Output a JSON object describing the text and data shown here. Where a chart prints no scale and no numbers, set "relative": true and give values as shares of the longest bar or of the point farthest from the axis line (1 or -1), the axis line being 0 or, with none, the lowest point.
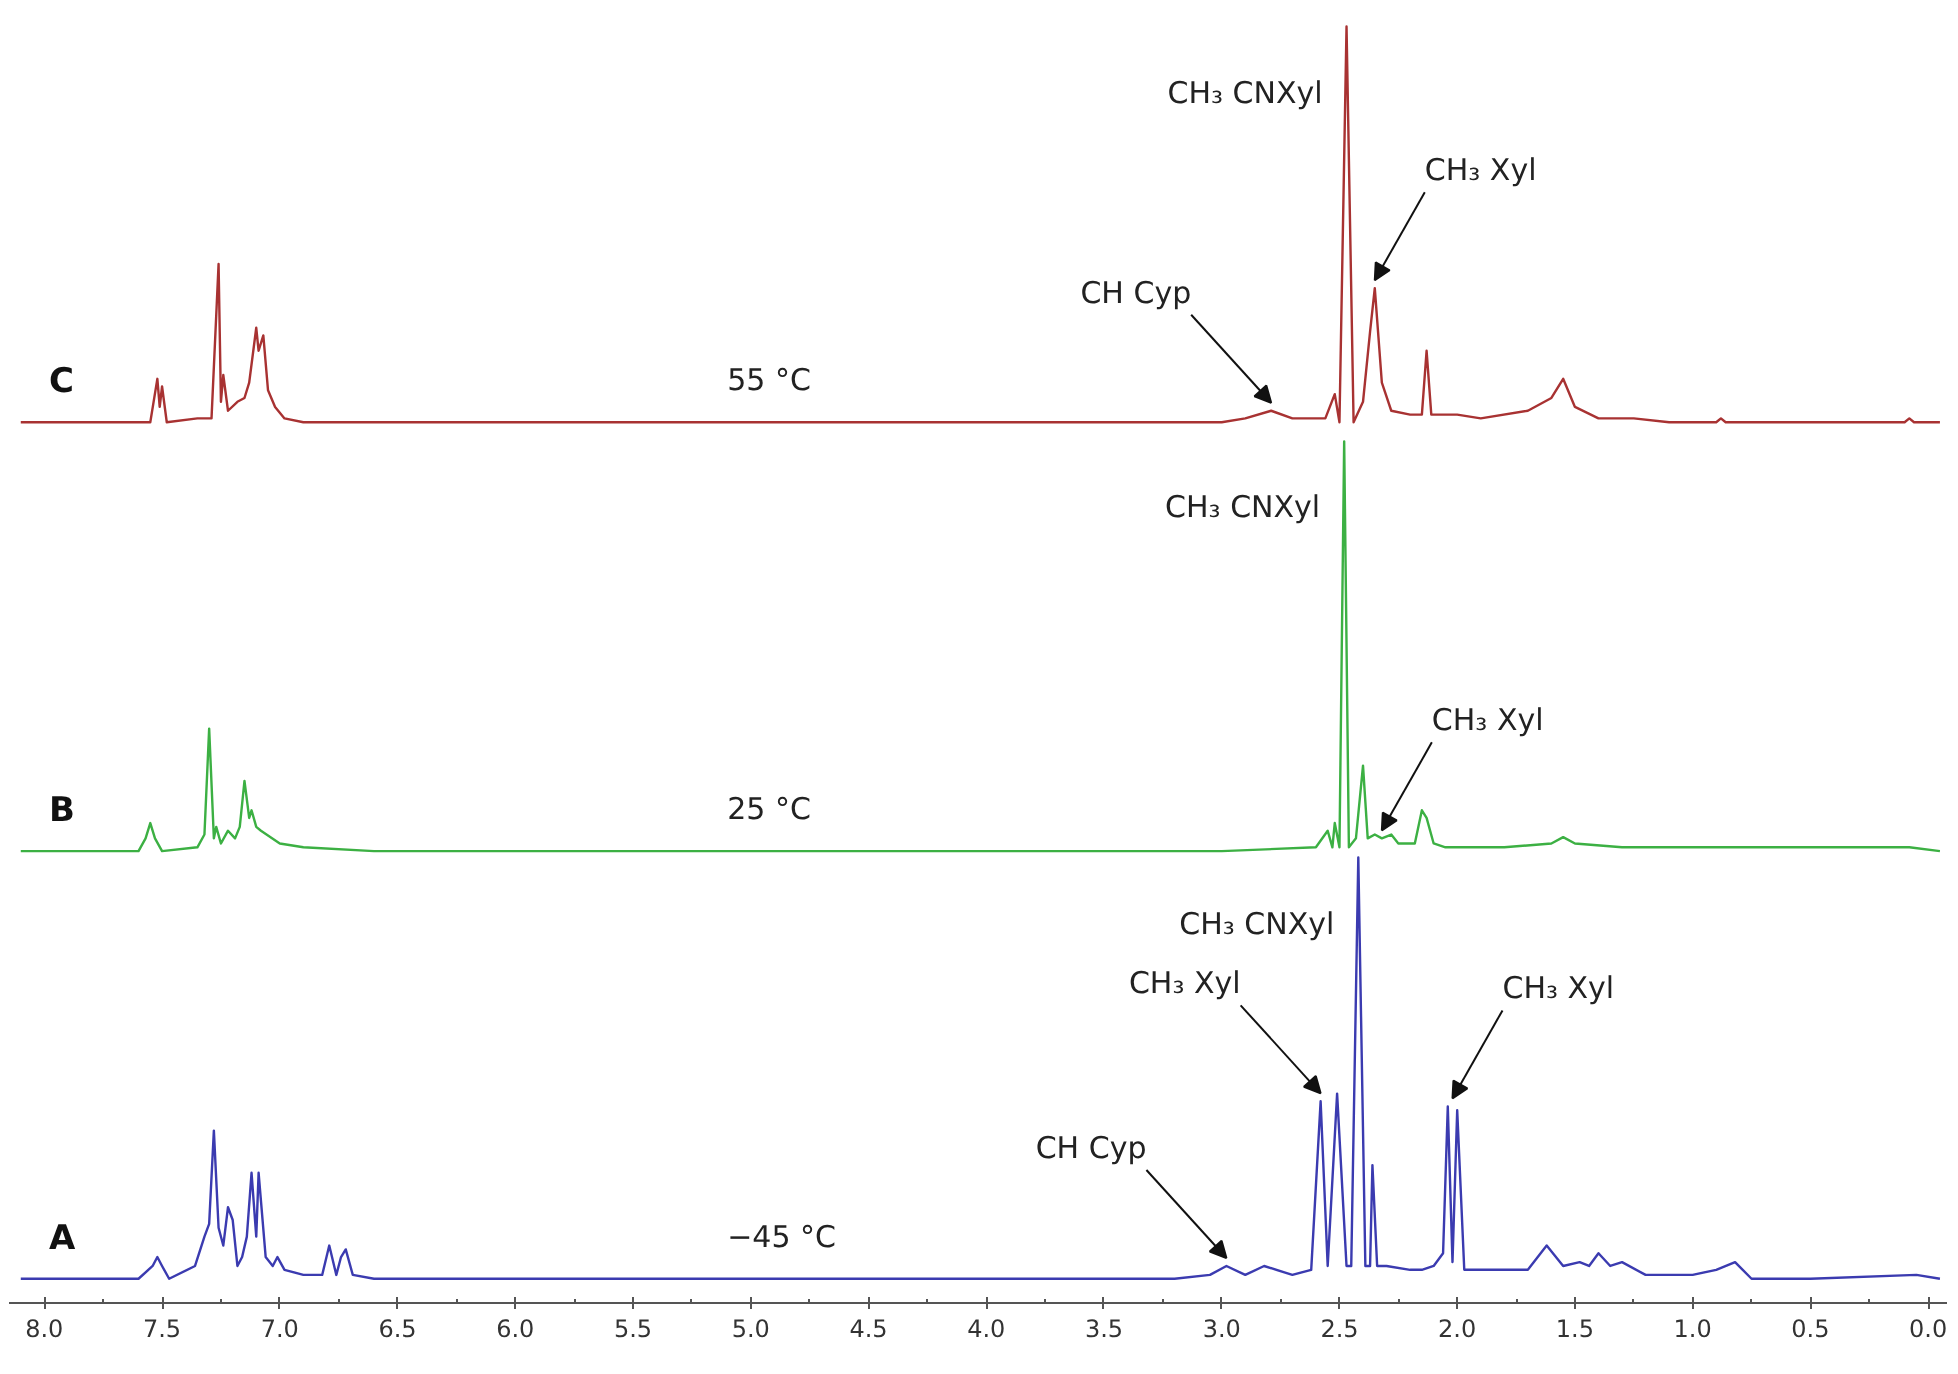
{
  "chart_data": {
    "type": "line",
    "relative": true,
    "xlim": [
      8.15,
      -0.08
    ],
    "xticks": [
      {
        "value": 8,
        "label": "8.0"
      },
      {
        "value": 7.5,
        "label": "7.5"
      },
      {
        "value": 7,
        "label": "7.0"
      },
      {
        "value": 6.5,
        "label": "6.5"
      },
      {
        "value": 6,
        "label": "6.0"
      },
      {
        "value": 5.5,
        "label": "5.5"
      },
      {
        "value": 5,
        "label": "5.0"
      },
      {
        "value": 4.5,
        "label": "4.5"
      },
      {
        "value": 4,
        "label": "4.0"
      },
      {
        "value": 3.5,
        "label": "3.5"
      },
      {
        "value": 3,
        "label": "3.0"
      },
      {
        "value": 2.5,
        "label": "2.5"
      },
      {
        "value": 2,
        "label": "2.0"
      },
      {
        "value": 1.5,
        "label": "1.5"
      },
      {
        "value": 1,
        "label": "1.0"
      },
      {
        "value": 0.5,
        "label": "0.5"
      },
      {
        "value": 0,
        "label": "0.0"
      }
    ],
    "tick_labels": "x",
    "series": [
      {
        "name": "C",
        "color": "#a83232",
        "x": [
          8.1,
          7.6,
          7.55,
          7.52,
          7.51,
          7.5,
          7.48,
          7.35,
          7.29,
          7.26,
          7.25,
          7.24,
          7.22,
          7.18,
          7.15,
          7.13,
          7.1,
          7.09,
          7.07,
          7.05,
          7.02,
          6.98,
          6.9,
          6.5,
          3.0,
          2.9,
          2.79,
          2.7,
          2.56,
          2.52,
          2.5,
          2.47,
          2.44,
          2.4,
          2.37,
          2.35,
          2.32,
          2.28,
          2.2,
          2.15,
          2.13,
          2.11,
          2.05,
          2.0,
          1.9,
          1.7,
          1.6,
          1.55,
          1.5,
          1.4,
          1.25,
          1.1,
          0.9,
          0.88,
          0.86,
          0.1,
          0.08,
          0.06,
          -0.05
        ],
        "values": [
          0.69,
          0.69,
          0.69,
          0.724,
          0.702,
          0.718,
          0.69,
          0.693,
          0.693,
          0.814,
          0.706,
          0.727,
          0.699,
          0.706,
          0.709,
          0.721,
          0.764,
          0.746,
          0.758,
          0.715,
          0.702,
          0.693,
          0.69,
          0.69,
          0.69,
          0.693,
          0.699,
          0.693,
          0.693,
          0.712,
          0.69,
          1,
          0.69,
          0.706,
          0.761,
          0.795,
          0.721,
          0.699,
          0.696,
          0.696,
          0.746,
          0.696,
          0.696,
          0.696,
          0.693,
          0.699,
          0.709,
          0.724,
          0.702,
          0.693,
          0.693,
          0.69,
          0.69,
          0.693,
          0.69,
          0.69,
          0.693,
          0.69,
          0.69
        ]
      },
      {
        "name": "B",
        "color": "#3cb043",
        "x": [
          8.1,
          7.6,
          7.57,
          7.55,
          7.53,
          7.5,
          7.35,
          7.32,
          7.3,
          7.28,
          7.27,
          7.25,
          7.22,
          7.19,
          7.17,
          7.15,
          7.13,
          7.12,
          7.1,
          7.08,
          7.0,
          6.9,
          6.6,
          3.0,
          2.6,
          2.55,
          2.53,
          2.52,
          2.5,
          2.48,
          2.46,
          2.43,
          2.4,
          2.38,
          2.35,
          2.32,
          2.28,
          2.25,
          2.18,
          2.15,
          2.13,
          2.1,
          2.05,
          1.8,
          1.6,
          1.55,
          1.5,
          1.3,
          1.0,
          0.88,
          0.5,
          0.08,
          -0.05
        ],
        "values": [
          0.354,
          0.354,
          0.364,
          0.376,
          0.364,
          0.354,
          0.357,
          0.367,
          0.45,
          0.364,
          0.373,
          0.36,
          0.37,
          0.364,
          0.373,
          0.409,
          0.38,
          0.386,
          0.373,
          0.37,
          0.36,
          0.357,
          0.354,
          0.354,
          0.357,
          0.37,
          0.357,
          0.376,
          0.357,
          0.675,
          0.357,
          0.364,
          0.421,
          0.364,
          0.367,
          0.364,
          0.367,
          0.36,
          0.36,
          0.386,
          0.38,
          0.36,
          0.357,
          0.357,
          0.36,
          0.365,
          0.36,
          0.357,
          0.357,
          0.357,
          0.357,
          0.357,
          0.354
        ]
      },
      {
        "name": "A",
        "color": "#3b3bb0",
        "x": [
          8.1,
          7.6,
          7.54,
          7.52,
          7.5,
          7.47,
          7.36,
          7.32,
          7.3,
          7.28,
          7.26,
          7.24,
          7.22,
          7.2,
          7.18,
          7.16,
          7.14,
          7.12,
          7.1,
          7.09,
          7.06,
          7.03,
          7.01,
          6.98,
          6.9,
          6.82,
          6.79,
          6.76,
          6.74,
          6.72,
          6.69,
          6.6,
          3.2,
          3.05,
          2.98,
          2.9,
          2.82,
          2.7,
          2.62,
          2.58,
          2.55,
          2.51,
          2.47,
          2.45,
          2.42,
          2.39,
          2.37,
          2.36,
          2.34,
          2.3,
          2.2,
          2.15,
          2.1,
          2.06,
          2.04,
          2.02,
          2.0,
          1.97,
          1.9,
          1.8,
          1.7,
          1.62,
          1.55,
          1.48,
          1.44,
          1.4,
          1.35,
          1.3,
          1.2,
          1.0,
          0.9,
          0.82,
          0.75,
          0.5,
          0.05,
          -0.05
        ],
        "values": [
          0.019,
          0.019,
          0.029,
          0.036,
          0.029,
          0.019,
          0.029,
          0.052,
          0.062,
          0.135,
          0.059,
          0.045,
          0.075,
          0.065,
          0.029,
          0.036,
          0.052,
          0.102,
          0.052,
          0.102,
          0.036,
          0.029,
          0.036,
          0.026,
          0.022,
          0.022,
          0.045,
          0.022,
          0.036,
          0.042,
          0.022,
          0.019,
          0.019,
          0.022,
          0.029,
          0.022,
          0.029,
          0.022,
          0.026,
          0.158,
          0.029,
          0.164,
          0.029,
          0.029,
          0.349,
          0.029,
          0.029,
          0.108,
          0.029,
          0.029,
          0.026,
          0.026,
          0.029,
          0.039,
          0.154,
          0.032,
          0.151,
          0.026,
          0.026,
          0.026,
          0.026,
          0.045,
          0.029,
          0.032,
          0.029,
          0.039,
          0.029,
          0.032,
          0.022,
          0.022,
          0.026,
          0.032,
          0.019,
          0.019,
          0.022,
          0.019
        ]
      }
    ],
    "annotations": [
      "55 °C",
      "25 °C",
      "−45 °C",
      "CH₃ CNXyl",
      "CH₃ CNXyl",
      "CH₃ CNXyl",
      {
        "text": "CH Cyp",
        "x": 2.79,
        "y": 0.699
      },
      {
        "text": "CH₃ Xyl",
        "x": 2.35,
        "y": 0.795
      },
      {
        "text": "CH₃ Xyl",
        "x": 2.32,
        "y": 0.364
      },
      {
        "text": "CH₃ Xyl",
        "x": 2.58,
        "y": 0.158
      },
      {
        "text": "CH₃ Xyl",
        "x": 2.02,
        "y": 0.154
      },
      {
        "text": "CH Cyp",
        "x": 2.98,
        "y": 0.029
      }
    ]
  }
}
